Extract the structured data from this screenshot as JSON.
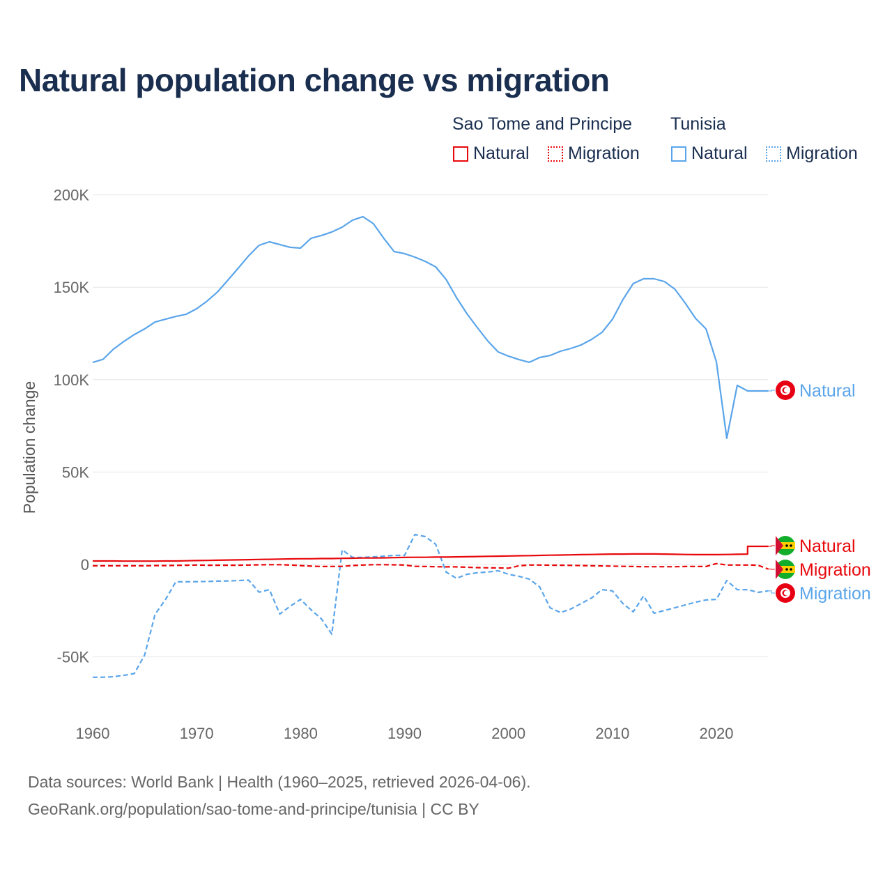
{
  "chart_data": {
    "type": "line",
    "title": "Natural population change vs migration",
    "ylabel": "Population change",
    "xlabel": "",
    "xlim": [
      1960,
      2025
    ],
    "ylim": [
      -70000,
      210000
    ],
    "x_ticks": [
      1960,
      1970,
      1980,
      1990,
      2000,
      2010,
      2020
    ],
    "x_tick_labels": [
      "1960",
      "1970",
      "1980",
      "1990",
      "2000",
      "2010",
      "2020"
    ],
    "y_ticks": [
      -50000,
      0,
      50000,
      100000,
      150000,
      200000
    ],
    "y_tick_labels": [
      "-50K",
      "0",
      "50K",
      "100K",
      "150K",
      "200K"
    ],
    "grid": true,
    "legend_position": "top-right",
    "legend": {
      "groups": [
        {
          "name": "Sao Tome and Principe",
          "items": [
            "Natural",
            "Migration"
          ]
        },
        {
          "name": "Tunisia",
          "items": [
            "Natural",
            "Migration"
          ]
        }
      ]
    },
    "x": [
      1960,
      1961,
      1962,
      1963,
      1964,
      1965,
      1966,
      1967,
      1968,
      1969,
      1970,
      1971,
      1972,
      1973,
      1974,
      1975,
      1976,
      1977,
      1978,
      1979,
      1980,
      1981,
      1982,
      1983,
      1984,
      1985,
      1986,
      1987,
      1988,
      1989,
      1990,
      1991,
      1992,
      1993,
      1994,
      1995,
      1996,
      1997,
      1998,
      1999,
      2000,
      2001,
      2002,
      2003,
      2004,
      2005,
      2006,
      2007,
      2008,
      2009,
      2010,
      2011,
      2012,
      2013,
      2014,
      2015,
      2016,
      2017,
      2018,
      2019,
      2020,
      2021,
      2022,
      2023,
      2024,
      2025
    ],
    "series": [
      {
        "name": "Tunisia Natural",
        "country": "Tunisia",
        "kind": "Natural",
        "color": "#5aa5ea",
        "dash": "solid",
        "end_label": "Natural",
        "values": [
          109300,
          111000,
          116500,
          120700,
          124400,
          127500,
          131200,
          132700,
          134200,
          135400,
          138400,
          142500,
          147400,
          153800,
          160300,
          167000,
          172700,
          174600,
          173100,
          171600,
          171200,
          176500,
          178000,
          179900,
          182500,
          186300,
          188200,
          184400,
          176500,
          169300,
          168200,
          166300,
          164000,
          161000,
          154200,
          144400,
          135700,
          128200,
          121000,
          115000,
          112700,
          110900,
          109400,
          112000,
          113100,
          115400,
          116900,
          118800,
          121800,
          125600,
          132700,
          143300,
          152000,
          154600,
          154600,
          153100,
          149000,
          141400,
          133100,
          127500,
          109700,
          68300,
          96900,
          93900,
          93900,
          93900
        ]
      },
      {
        "name": "Tunisia Migration",
        "country": "Tunisia",
        "kind": "Migration",
        "color": "#5aa5ea",
        "dash": "dashed",
        "end_label": "Migration",
        "values": [
          -61000,
          -61000,
          -60700,
          -60000,
          -59000,
          -49000,
          -27000,
          -19000,
          -9400,
          -9400,
          -9300,
          -9200,
          -9000,
          -8900,
          -8700,
          -8500,
          -15000,
          -13600,
          -26800,
          -22600,
          -18900,
          -24500,
          -29400,
          -37700,
          7900,
          3800,
          3800,
          4100,
          4500,
          4900,
          4900,
          16200,
          15100,
          10900,
          -4100,
          -7500,
          -5300,
          -4500,
          -4100,
          -3400,
          -5300,
          -6400,
          -7900,
          -12100,
          -23400,
          -26000,
          -24100,
          -21100,
          -18100,
          -13600,
          -14300,
          -21100,
          -25600,
          -17000,
          -26400,
          -24900,
          -23400,
          -21900,
          -20400,
          -19200,
          -18900,
          -8700,
          -13600,
          -13600,
          -15100,
          -14300
        ]
      },
      {
        "name": "Sao Tome and Principe Natural",
        "country": "Sao Tome and Principe",
        "kind": "Natural",
        "color": "#e8080c",
        "dash": "solid",
        "end_label": "Natural",
        "values": [
          1900,
          1900,
          1900,
          1800,
          1800,
          1800,
          1800,
          1900,
          1900,
          2000,
          2100,
          2200,
          2300,
          2400,
          2500,
          2600,
          2700,
          2800,
          2900,
          3000,
          3100,
          3100,
          3200,
          3200,
          3300,
          3400,
          3500,
          3500,
          3600,
          3700,
          3800,
          3900,
          3900,
          4000,
          4000,
          4100,
          4200,
          4300,
          4400,
          4500,
          4600,
          4700,
          4800,
          4900,
          5000,
          5100,
          5200,
          5300,
          5400,
          5500,
          5600,
          5600,
          5700,
          5700,
          5700,
          5600,
          5500,
          5400,
          5300,
          5300,
          5300,
          5400,
          5500,
          5600,
          10000,
          10000
        ]
      },
      {
        "name": "Sao Tome and Principe Migration",
        "country": "Sao Tome and Principe",
        "kind": "Migration",
        "color": "#e8080c",
        "dash": "dashed",
        "end_label": "Migration",
        "values": [
          -700,
          -700,
          -700,
          -700,
          -700,
          -700,
          -600,
          -600,
          -500,
          -400,
          -300,
          -400,
          -400,
          -400,
          -400,
          -300,
          -200,
          -100,
          -100,
          -300,
          -600,
          -900,
          -1100,
          -1100,
          -1000,
          -600,
          -300,
          -100,
          -100,
          -200,
          -300,
          -1000,
          -1100,
          -1200,
          -1300,
          -1300,
          -1500,
          -1700,
          -1800,
          -1900,
          -2000,
          -700,
          -300,
          -300,
          -400,
          -400,
          -500,
          -600,
          -700,
          -800,
          -900,
          -1000,
          -1100,
          -1200,
          -1200,
          -1200,
          -1200,
          -1100,
          -1100,
          -1100,
          500,
          -300,
          -300,
          -300,
          -400,
          -2500
        ]
      }
    ],
    "source": "Data sources: World Bank | Health (1960–2025, retrieved 2026-04-06).",
    "credit": "GeoRank.org/population/sao-tome-and-principe/tunisia | CC BY"
  }
}
